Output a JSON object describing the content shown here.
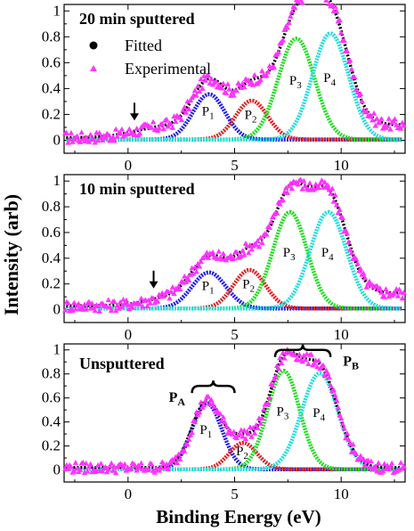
{
  "figure": {
    "ylabel": "Intensity (arb)",
    "xlabel": "Binding Energy (eV)"
  },
  "chart_data": [
    {
      "type": "line",
      "title": "20 min sputtered",
      "xlim": [
        -3,
        13
      ],
      "ylim": [
        -0.1,
        1.05
      ],
      "x_ticks": [
        0,
        5,
        10
      ],
      "y_ticks": [
        0,
        0.2,
        0.4,
        0.6,
        0.8,
        1
      ],
      "y_tick_labels": [
        "0",
        "0.2",
        "0.4",
        "0.6",
        "0.8",
        "1"
      ],
      "x_tick_labels": [
        "0",
        "5",
        "10"
      ],
      "legend": {
        "placement": "top-left",
        "entries": [
          "Fitted",
          "Experimental"
        ]
      },
      "annotation": {
        "type": "down-arrow",
        "x": 0.3
      },
      "peaks": [
        {
          "name": "P1",
          "label_main": "P",
          "label_sub": "1",
          "center": 3.8,
          "amp": 0.35,
          "sigma": 0.75,
          "color": "#1f1fdd"
        },
        {
          "name": "P2",
          "label_main": "P",
          "label_sub": "2",
          "center": 5.8,
          "amp": 0.3,
          "sigma": 0.75,
          "color": "#e02020"
        },
        {
          "name": "P3",
          "label_main": "P",
          "label_sub": "3",
          "center": 7.9,
          "amp": 0.78,
          "sigma": 0.85,
          "color": "#22dd22"
        },
        {
          "name": "P4",
          "label_main": "P",
          "label_sub": "4",
          "center": 9.5,
          "amp": 0.82,
          "sigma": 0.85,
          "color": "#22dddd"
        }
      ],
      "background": {
        "level": 0.02,
        "rise": 0.1,
        "rise_center": 0.3
      }
    },
    {
      "type": "line",
      "title": "10 min sputtered",
      "xlim": [
        -3,
        13
      ],
      "ylim": [
        -0.1,
        1.05
      ],
      "x_ticks": [
        0,
        5,
        10
      ],
      "y_ticks": [
        0,
        0.2,
        0.4,
        0.6,
        0.8,
        1
      ],
      "y_tick_labels": [
        "0",
        "0.2",
        "0.4",
        "0.6",
        "0.8",
        "1"
      ],
      "x_tick_labels": [
        "0",
        "5",
        "10"
      ],
      "annotation": {
        "type": "down-arrow",
        "x": 1.2
      },
      "peaks": [
        {
          "name": "P1",
          "label_main": "P",
          "label_sub": "1",
          "center": 3.8,
          "amp": 0.28,
          "sigma": 0.8,
          "color": "#1f1fdd"
        },
        {
          "name": "P2",
          "label_main": "P",
          "label_sub": "2",
          "center": 5.7,
          "amp": 0.3,
          "sigma": 0.75,
          "color": "#e02020"
        },
        {
          "name": "P3",
          "label_main": "P",
          "label_sub": "3",
          "center": 7.6,
          "amp": 0.75,
          "sigma": 0.8,
          "color": "#22dd22"
        },
        {
          "name": "P4",
          "label_main": "P",
          "label_sub": "4",
          "center": 9.4,
          "amp": 0.75,
          "sigma": 0.85,
          "color": "#22dddd"
        }
      ],
      "background": {
        "level": 0.03,
        "rise": 0.1,
        "rise_center": 1.2
      }
    },
    {
      "type": "line",
      "title": "Unsputtered",
      "xlim": [
        -3,
        13
      ],
      "ylim": [
        -0.1,
        1.05
      ],
      "x_ticks": [
        0,
        5,
        10
      ],
      "y_ticks": [
        0,
        0.2,
        0.4,
        0.6,
        0.8,
        1
      ],
      "y_tick_labels": [
        "0",
        "0.2",
        "0.4",
        "0.6",
        "0.8",
        "1"
      ],
      "x_tick_labels": [
        "0",
        "5",
        "10"
      ],
      "groups": [
        {
          "label_main": "P",
          "label_sub": "A",
          "from": 3.0,
          "to": 5.0
        },
        {
          "label_main": "P",
          "label_sub": "B",
          "from": 6.9,
          "to": 9.5
        }
      ],
      "peaks": [
        {
          "name": "P1",
          "label_main": "P",
          "label_sub": "1",
          "center": 3.7,
          "amp": 0.55,
          "sigma": 0.7,
          "color": "#1f1fdd"
        },
        {
          "name": "P2",
          "label_main": "P",
          "label_sub": "2",
          "center": 5.4,
          "amp": 0.22,
          "sigma": 0.65,
          "color": "#e02020"
        },
        {
          "name": "P3",
          "label_main": "P",
          "label_sub": "3",
          "center": 7.3,
          "amp": 0.82,
          "sigma": 0.75,
          "color": "#22dd22"
        },
        {
          "name": "P4",
          "label_main": "P",
          "label_sub": "4",
          "center": 9.0,
          "amp": 0.8,
          "sigma": 0.85,
          "color": "#22dddd"
        }
      ],
      "background": {
        "level": 0.02,
        "rise": 0.0,
        "rise_center": 0
      }
    }
  ],
  "colors": {
    "experimental": "#ff33ff",
    "fitted": "#000000"
  }
}
